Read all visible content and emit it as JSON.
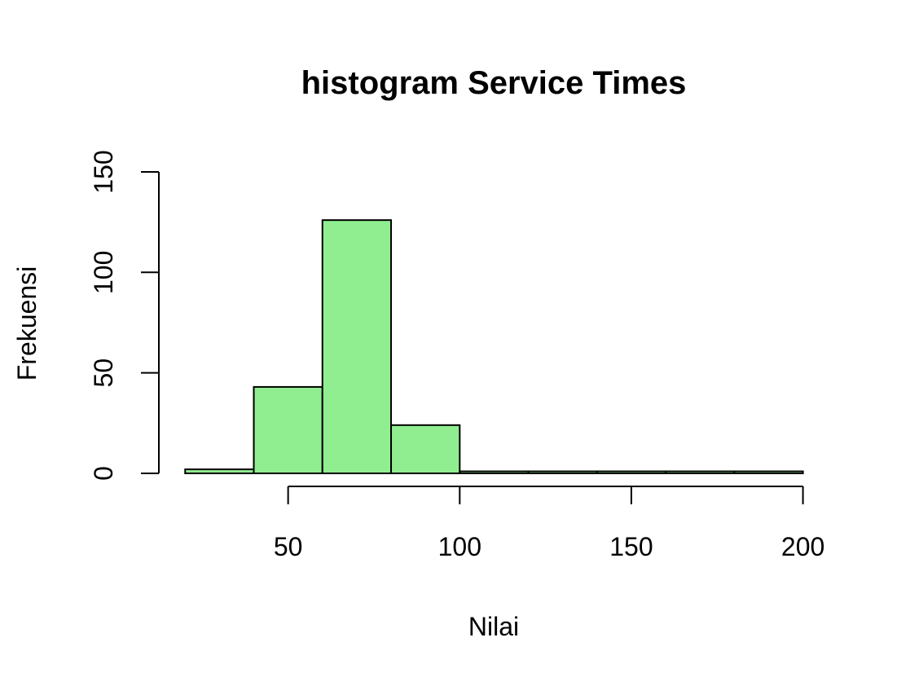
{
  "chart_data": {
    "type": "bar",
    "title": "histogram Service Times",
    "xlabel": "Nilai",
    "ylabel": "Frekuensi",
    "bins": [
      {
        "start": 20,
        "end": 40,
        "count": 2
      },
      {
        "start": 40,
        "end": 60,
        "count": 43
      },
      {
        "start": 60,
        "end": 80,
        "count": 126
      },
      {
        "start": 80,
        "end": 100,
        "count": 24
      },
      {
        "start": 100,
        "end": 120,
        "count": 1
      },
      {
        "start": 120,
        "end": 140,
        "count": 1
      },
      {
        "start": 140,
        "end": 160,
        "count": 1
      },
      {
        "start": 160,
        "end": 180,
        "count": 1
      },
      {
        "start": 180,
        "end": 200,
        "count": 1
      }
    ],
    "xticks": [
      50,
      100,
      150,
      200
    ],
    "yticks": [
      0,
      50,
      100,
      150
    ],
    "xaxis_range": [
      50,
      200
    ],
    "yaxis_range": [
      0,
      150
    ],
    "bar_color": "#90EE90",
    "grid": false,
    "legend": "none"
  }
}
